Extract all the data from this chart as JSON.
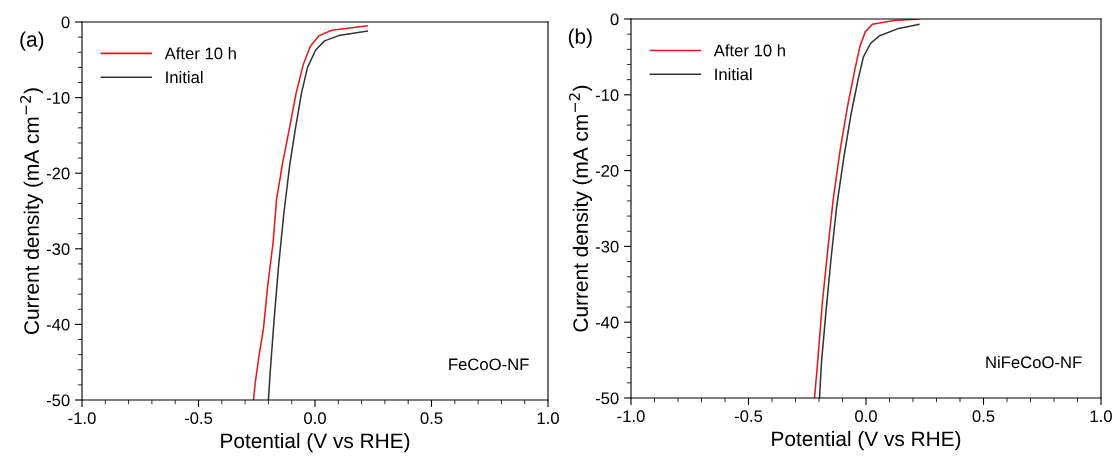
{
  "chart_data": [
    {
      "type": "line",
      "xlabel": "Potential (V vs RHE)",
      "ylabel": "Current density (mA cm$^{−2}$)",
      "annotations": [
        "(a)",
        "FeCoO-NF"
      ],
      "xlim": [
        -1.0,
        1.0
      ],
      "xticks": [
        {
          "value": -1.0,
          "label": "-1.0"
        },
        {
          "value": -0.5,
          "label": "-0.5"
        },
        {
          "value": 0.0,
          "label": "0.0"
        },
        {
          "value": 0.5,
          "label": "0.5"
        },
        {
          "value": 1.0,
          "label": "1.0"
        }
      ],
      "ylim": [
        -50,
        0
      ],
      "yticks": [
        -50,
        -40,
        -30,
        -20,
        -10,
        0
      ],
      "legend": "top left",
      "grid": false,
      "series": [
        {
          "name": "After 10 h",
          "color": "#e3191c",
          "x": [
            -0.264,
            -0.256,
            -0.241,
            -0.221,
            -0.203,
            -0.18,
            -0.165,
            -0.14,
            -0.11,
            -0.081,
            -0.05,
            -0.02,
            0.018,
            0.072,
            0.224
          ],
          "values": [
            -50,
            -47.6,
            -44.3,
            -40.5,
            -34.9,
            -29.2,
            -23.5,
            -18.8,
            -14.1,
            -9.4,
            -5.6,
            -3.2,
            -1.8,
            -1.1,
            -0.5
          ]
        },
        {
          "name": "Initial",
          "color": "#333333",
          "x": [
            -0.2,
            -0.192,
            -0.176,
            -0.157,
            -0.134,
            -0.108,
            -0.084,
            -0.058,
            -0.032,
            0.003,
            0.041,
            0.102,
            0.224
          ],
          "values": [
            -50,
            -46.2,
            -39.6,
            -32.5,
            -25.4,
            -18.8,
            -14.1,
            -9.4,
            -6.0,
            -3.7,
            -2.5,
            -1.8,
            -1.2
          ]
        }
      ]
    },
    {
      "type": "line",
      "xlabel": "Potential (V vs RHE)",
      "ylabel": "Current density (mA cm$^{−2}$)",
      "annotations": [
        "(b)",
        "NiFeCoO-NF"
      ],
      "xlim": [
        -1.0,
        1.0
      ],
      "xticks": [
        {
          "value": -1.0,
          "label": "-1.0"
        },
        {
          "value": -0.5,
          "label": "-0.5"
        },
        {
          "value": 0.0,
          "label": "0.0"
        },
        {
          "value": 0.5,
          "label": "0.5"
        },
        {
          "value": 1.0,
          "label": "1.0"
        }
      ],
      "ylim": [
        -50,
        0
      ],
      "yticks": [
        -50,
        -40,
        -30,
        -20,
        -10,
        0
      ],
      "legend": "top left",
      "grid": false,
      "series": [
        {
          "name": "After 10 h",
          "color": "#e3191c",
          "x": [
            -0.219,
            -0.204,
            -0.186,
            -0.163,
            -0.14,
            -0.11,
            -0.079,
            -0.049,
            -0.026,
            -0.003,
            0.027,
            0.119,
            0.225
          ],
          "values": [
            -50,
            -44.6,
            -37.5,
            -30.5,
            -23.9,
            -17.3,
            -11.6,
            -6.9,
            -3.6,
            -1.7,
            -0.7,
            -0.2,
            0
          ]
        },
        {
          "name": "Initial",
          "color": "#333333",
          "x": [
            -0.198,
            -0.189,
            -0.17,
            -0.148,
            -0.125,
            -0.094,
            -0.064,
            -0.033,
            -0.011,
            0.02,
            0.058,
            0.134,
            0.225
          ],
          "values": [
            -50,
            -45.1,
            -38.5,
            -31.4,
            -24.8,
            -18.2,
            -12.6,
            -7.9,
            -5.0,
            -3.2,
            -2.2,
            -1.3,
            -0.7
          ]
        }
      ]
    }
  ]
}
